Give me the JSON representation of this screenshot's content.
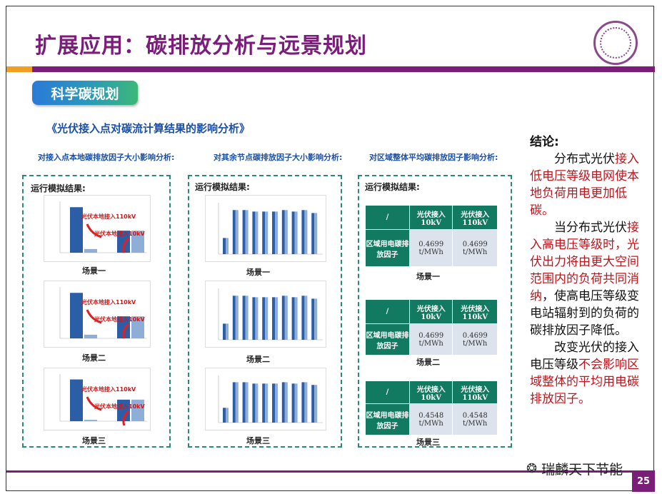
{
  "title": "扩展应用：碳排放分析与远景规划",
  "badge": "科学碳规划",
  "subtitle": "《光伏接入点对碳流计算结果的影响分析》",
  "col_heads": [
    "对接入点本地碳排放因子大小影响分析:",
    "对其余节点碳排放因子大小影响分析:",
    "对区域整体平均碳排放因子影响分析:"
  ],
  "panel_label": "运行模拟结果:",
  "scenes": [
    "场景一",
    "场景二",
    "场景三"
  ],
  "annotations": {
    "local_110": "光伏本地接入110kV",
    "local_10": "光伏本地接入10kV"
  },
  "table": {
    "corner": "/",
    "col1": "光伏接入10kV",
    "col2": "光伏接入110kV",
    "row_label": "区域用电碳排放因子",
    "values": [
      [
        "0.4699 t/MWh",
        "0.4699 t/MWh"
      ],
      [
        "0.4699 t/MWh",
        "0.4699 t/MWh"
      ],
      [
        "0.4548 t/MWh",
        "0.4548 t/MWh"
      ]
    ]
  },
  "conclusion": {
    "heading": "结论:",
    "p1_normal": "分布式光伏",
    "p1_red": "接入低电压等级电网使本地负荷用电更加低碳。",
    "p2_normal_a": "当分布式光伏",
    "p2_red": "接入高电压等级时，光伏出力将由更大空间范围内的负荷共同消纳",
    "p2_normal_b": "，使高电压等级变电站辐射到的负荷的碳排放因子降低。",
    "p3_normal": "改变光伏的接入电压等级",
    "p3_red": "不会影响区域整体的平均用电碳排放因子。"
  },
  "watermark": "瑞麟天下节能",
  "page_number": "25",
  "colors": {
    "purple": "#7a1e7a",
    "orange": "#f0a020",
    "teal": "#127a60",
    "red": "#c0141c",
    "blue_text": "#1a4fa8"
  },
  "chart_data": [
    {
      "type": "bar",
      "name": "scene1_local",
      "series": [
        {
          "values": [
            0.62,
            0.3
          ]
        },
        {
          "values": [
            0.05,
            0.3
          ]
        }
      ],
      "ylim": [
        0,
        0.7
      ]
    },
    {
      "type": "bar",
      "name": "scene2_local",
      "series": [
        {
          "values": [
            0.62,
            0.3
          ]
        },
        {
          "values": [
            0.05,
            0.3
          ]
        }
      ],
      "ylim": [
        0,
        0.7
      ]
    },
    {
      "type": "bar",
      "name": "scene3_local",
      "series": [
        {
          "values": [
            0.62,
            0.32
          ]
        },
        {
          "values": [
            0.02,
            0.32
          ]
        }
      ],
      "ylim": [
        0,
        0.7
      ]
    },
    {
      "type": "bar",
      "name": "other_nodes",
      "values": [
        0.22,
        0.6,
        0.6,
        0.58,
        0.58,
        0.58,
        0.6,
        0.58,
        0.6,
        0.56
      ],
      "ylim": [
        0,
        0.7
      ]
    }
  ]
}
